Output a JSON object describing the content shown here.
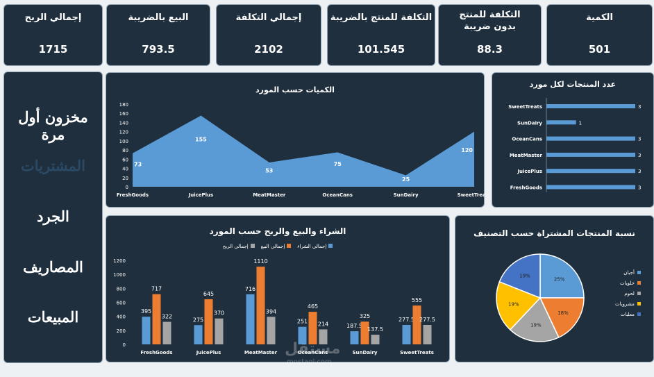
{
  "kpis": [
    {
      "title": "إجمالي الربح",
      "value": "1715"
    },
    {
      "title": "البيع بالضريبة",
      "value": "793.5"
    },
    {
      "title": "إجمالي التكلفة",
      "value": "2102"
    },
    {
      "title": "التكلفة للمنتج بالضريبة",
      "value": "101.545"
    },
    {
      "title": "التكلفة للمنتج بدون ضريبة",
      "value": "88.3"
    },
    {
      "title": "الكمية",
      "value": "501"
    }
  ],
  "nav": {
    "items": [
      "مخزون أول مرة",
      "المشتريات",
      "الجرد",
      "المصاريف",
      "المبيعات"
    ],
    "active_index": 1
  },
  "area_chart": {
    "title": "الكميات حسب المورد",
    "type": "area",
    "categories": [
      "FreshGoods",
      "JuicePlus",
      "MeatMaster",
      "OceanCans",
      "SunDairy",
      "SweetTreats"
    ],
    "values": [
      73,
      155,
      53,
      75,
      25,
      120
    ],
    "ylim": [
      0,
      180
    ],
    "yticks": [
      0,
      20,
      40,
      60,
      80,
      100,
      120,
      140,
      160,
      180
    ],
    "color": "#5b9bd5"
  },
  "hbar_chart": {
    "title": "عدد المنتجات لكل مورد",
    "type": "bar",
    "categories": [
      "SweetTreats",
      "SunDairy",
      "OceanCans",
      "MeatMaster",
      "JuicePlus",
      "FreshGoods"
    ],
    "values": [
      3,
      1,
      3,
      3,
      3,
      3
    ],
    "color": "#5b9bd5"
  },
  "group_chart": {
    "title": "الشراء والبيع والربح حسب المورد",
    "type": "bar",
    "categories": [
      "FreshGoods",
      "JuicePlus",
      "MeatMaster",
      "OceanCans",
      "SunDairy",
      "SweetTreats"
    ],
    "series": [
      {
        "name": "إجمالي الشراء",
        "values": [
          395,
          275,
          716,
          251,
          187.5,
          277.5
        ],
        "color": "#5b9bd5"
      },
      {
        "name": "إجمالي البيع",
        "values": [
          717,
          645,
          1110,
          465,
          325,
          555
        ],
        "color": "#ed7d31"
      },
      {
        "name": "إجمالي الربح",
        "values": [
          322,
          370,
          394,
          214,
          137.5,
          277.5
        ],
        "color": "#a5a5a5"
      }
    ],
    "ylim": [
      0,
      1200
    ],
    "yticks": [
      0,
      200,
      400,
      600,
      800,
      1000,
      1200
    ]
  },
  "pie_chart": {
    "title": "نسبة المنتجات المشتراة حسب التصنيف",
    "type": "pie",
    "slices": [
      {
        "name": "أجبان",
        "value": 25,
        "label": "25%",
        "color": "#5b9bd5"
      },
      {
        "name": "حلويات",
        "value": 18,
        "label": "18%",
        "color": "#ed7d31"
      },
      {
        "name": "لحوم",
        "value": 19,
        "label": "19%",
        "color": "#a5a5a5"
      },
      {
        "name": "مشروبات",
        "value": 19,
        "label": "19%",
        "color": "#ffc000"
      },
      {
        "name": "معلبات",
        "value": 19,
        "label": "19%",
        "color": "#4472c4"
      }
    ]
  },
  "watermark": {
    "text": "مستقل",
    "sub": "mostaql.com"
  }
}
